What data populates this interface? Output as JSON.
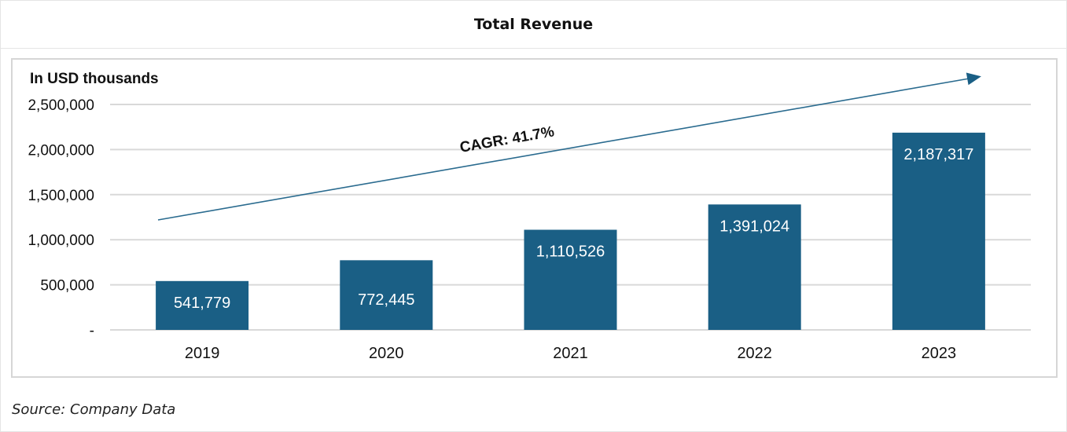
{
  "chart_data": {
    "type": "bar",
    "title": "Total Revenue",
    "ylabel": "In USD thousands",
    "categories": [
      "2019",
      "2020",
      "2021",
      "2022",
      "2023"
    ],
    "values": [
      541779,
      772445,
      1110526,
      1391024,
      2187317
    ],
    "value_labels": [
      "541,779",
      "772,445",
      "1,110,526",
      "1,391,024",
      "2,187,317"
    ],
    "y_ticks": [
      0,
      500000,
      1000000,
      1500000,
      2000000,
      2500000
    ],
    "y_tick_labels": [
      "-",
      "500,000",
      "1,000,000",
      "1,500,000",
      "2,000,000",
      "2,500,000"
    ],
    "ylim": [
      0,
      2500000
    ],
    "grid": true,
    "bar_color": "#1a5f85",
    "annotation": "CAGR: 41.7%"
  },
  "source": "Source: Company Data",
  "colors": {
    "grid": "#d9d9d9",
    "arrow": "#2a6b8f",
    "label_on_bar": "#ffffff"
  }
}
